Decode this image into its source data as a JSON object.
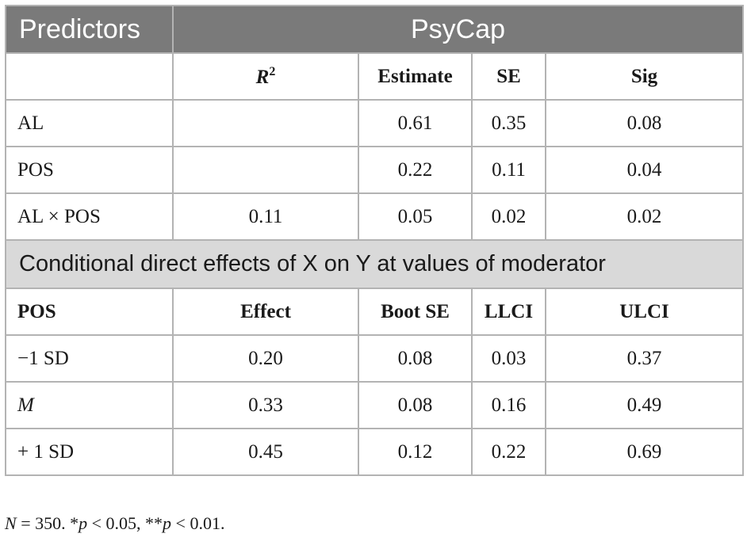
{
  "header": {
    "predictors": "Predictors",
    "psycap": "PsyCap"
  },
  "top_columns": {
    "r2_base": "R",
    "r2_sup": "2",
    "estimate": "Estimate",
    "se": "SE",
    "sig": "Sig"
  },
  "top_rows": [
    {
      "predictor": "AL",
      "r2": "",
      "estimate": "0.61",
      "se": "0.35",
      "sig": "0.08"
    },
    {
      "predictor": "POS",
      "r2": "",
      "estimate": "0.22",
      "se": "0.11",
      "sig": "0.04"
    },
    {
      "predictor": "AL × POS",
      "r2": "0.11",
      "estimate": "0.05",
      "se": "0.02",
      "sig": "0.02"
    }
  ],
  "band": "Conditional direct effects of X on Y at values of moderator",
  "bottom_columns": {
    "pos": "POS",
    "effect": "Effect",
    "boot_se": "Boot SE",
    "llci": "LLCI",
    "ulci": "ULCI"
  },
  "bottom_rows": [
    {
      "level": "−1 SD",
      "effect": "0.20",
      "boot_se": "0.08",
      "llci": "0.03",
      "ulci": "0.37"
    },
    {
      "level": "M",
      "effect": "0.33",
      "boot_se": "0.08",
      "llci": "0.16",
      "ulci": "0.49"
    },
    {
      "level": "+ 1 SD",
      "effect": "0.45",
      "boot_se": "0.12",
      "llci": "0.22",
      "ulci": "0.69"
    }
  ],
  "note": {
    "n": "N",
    "n_value": " = 350. *",
    "p1": "p",
    "p1_value": " < 0.05, **",
    "p2": "p",
    "p2_value": " < 0.01."
  }
}
